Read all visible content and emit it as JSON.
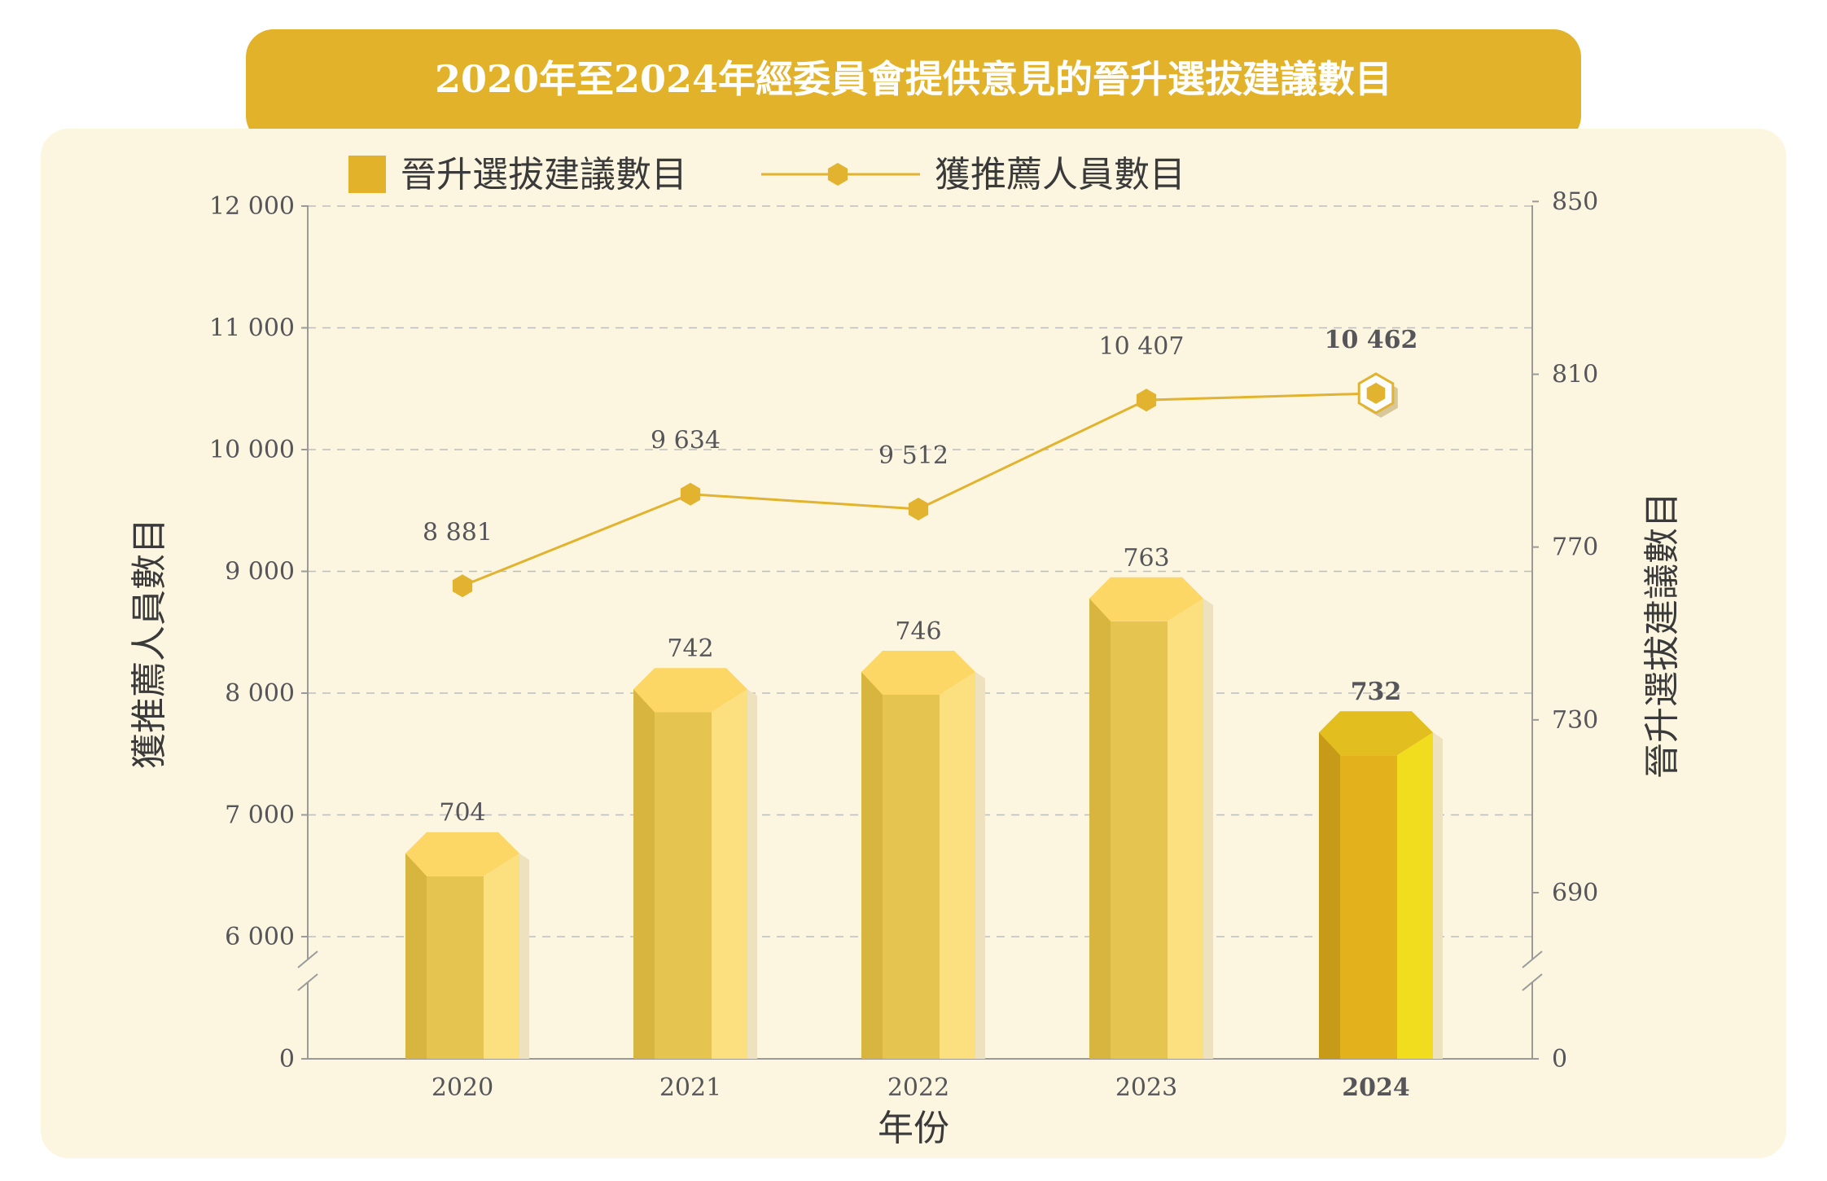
{
  "colors": {
    "banner": "#E2B22A",
    "panel": "#FCF6E1",
    "bar_top": "#FCD766",
    "bar_face": "#E5C44F",
    "bar_left": "#D8B53F",
    "bar_right": "#FCE080",
    "bar_shadow": "#EDE1BE",
    "hi_top": "#E2BE1E",
    "hi_face": "#E3B11C",
    "hi_left": "#C79A18",
    "hi_right": "#F2DC1E",
    "line": "#E2B32E",
    "grid": "#BDBDBD",
    "axis": "#9A9A9A",
    "highlight_text": "#E2B22A"
  },
  "chart_data": {
    "type": "bar",
    "title": "2020年至2024年經委員會提供意見的晉升選拔建議數目",
    "categories": [
      "2020",
      "2021",
      "2022",
      "2023",
      "2024"
    ],
    "highlight_category": "2024",
    "xlabel": "年份",
    "ylabel_left": "獲推薦人員數目",
    "ylabel_right": "晉升選拔建議數目",
    "left_axis": {
      "ticks": [
        0,
        6000,
        7000,
        8000,
        9000,
        10000,
        11000,
        12000
      ],
      "tick_labels": [
        "0",
        "6 000",
        "7 000",
        "8 000",
        "9 000",
        "10 000",
        "11 000",
        "12 000"
      ],
      "broken_below": 6000
    },
    "right_axis": {
      "ticks": [
        0,
        690,
        730,
        770,
        810,
        850
      ],
      "tick_labels": [
        "0",
        "690",
        "730",
        "770",
        "810",
        "850"
      ],
      "broken_below": 690
    },
    "grid": true,
    "legend_position": "top-left",
    "series": [
      {
        "name": "晉升選拔建議數目",
        "kind": "bar",
        "axis": "right",
        "values": [
          704,
          742,
          746,
          763,
          732
        ],
        "labels": [
          "704",
          "742",
          "746",
          "763",
          "732"
        ]
      },
      {
        "name": "獲推薦人員數目",
        "kind": "line",
        "axis": "left",
        "values": [
          8881,
          9634,
          9512,
          10407,
          10462
        ],
        "labels": [
          "8 881",
          "9 634",
          "9 512",
          "10 407",
          "10 462"
        ]
      }
    ]
  }
}
